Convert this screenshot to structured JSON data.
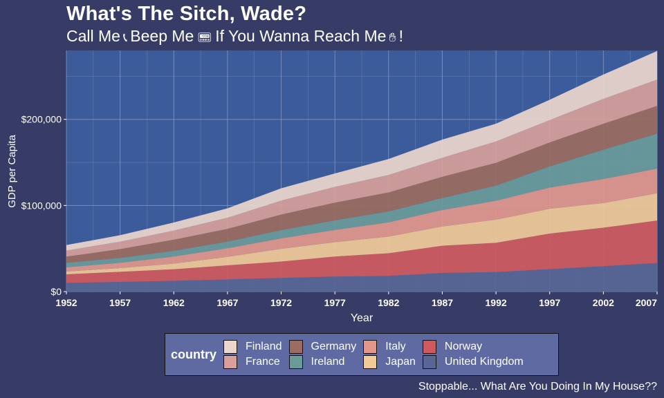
{
  "header": {
    "title": "What's The Sitch, Wade?",
    "subtitle_part1": "Call Me",
    "subtitle_part2": "Beep Me",
    "subtitle_part3": "If You Wanna Reach Me",
    "subtitle_part4": "!",
    "icons": [
      "phone-icon",
      "pager-icon",
      "waving-hand-icon"
    ]
  },
  "caption": "Stoppable... What Are You Doing In My House??",
  "colors": {
    "background": "#363c65",
    "plot_background": "#3b5b9a",
    "grid": "#8c9ccc",
    "legend_background": "#5e6aa1"
  },
  "chart_data": {
    "type": "area",
    "stacked": true,
    "xlabel": "Year",
    "ylabel": "GDP per Capita",
    "x": [
      1952,
      1957,
      1962,
      1967,
      1972,
      1977,
      1982,
      1987,
      1992,
      1997,
      2002,
      2007
    ],
    "x_tick_labels": [
      "1952",
      "1957",
      "1962",
      "1967",
      "1972",
      "1977",
      "1982",
      "1987",
      "1992",
      "1997",
      "2002",
      "2007"
    ],
    "xlim": [
      1952,
      2007
    ],
    "ylim": [
      0,
      280000
    ],
    "y_ticks": [
      0,
      100000,
      200000
    ],
    "y_tick_labels": [
      "$0",
      "$100,000",
      "$200,000"
    ],
    "grid": true,
    "legend_position": "bottom",
    "legend_title": "country",
    "stack_order_bottom_to_top": [
      "United Kingdom",
      "Norway",
      "Japan",
      "Italy",
      "Ireland",
      "Germany",
      "France",
      "Finland"
    ],
    "series": [
      {
        "name": "Finland",
        "color": "#ecd6cb",
        "values": [
          6424,
          7545,
          9372,
          10922,
          14359,
          15605,
          18533,
          21141,
          20647,
          23723,
          28205,
          33207
        ]
      },
      {
        "name": "France",
        "color": "#d7a09a",
        "values": [
          7030,
          8663,
          10560,
          12999,
          16107,
          18293,
          20294,
          22066,
          24704,
          25890,
          28926,
          30470
        ]
      },
      {
        "name": "Germany",
        "color": "#9b6c5f",
        "values": [
          7144,
          10188,
          12902,
          14746,
          18016,
          20513,
          22032,
          24639,
          26505,
          27789,
          30036,
          32170
        ]
      },
      {
        "name": "Ireland",
        "color": "#6a9a9a",
        "values": [
          5211,
          5599,
          6632,
          7656,
          9531,
          11151,
          12618,
          13873,
          17559,
          24522,
          34077,
          40676
        ]
      },
      {
        "name": "Italy",
        "color": "#e3968a",
        "values": [
          4931,
          6249,
          8244,
          10022,
          12269,
          14256,
          16537,
          19208,
          22014,
          24675,
          27968,
          28570
        ]
      },
      {
        "name": "Japan",
        "color": "#f3c997",
        "values": [
          3217,
          4318,
          6577,
          9848,
          14779,
          16610,
          19384,
          22376,
          26825,
          28817,
          28605,
          31656
        ]
      },
      {
        "name": "Norway",
        "color": "#d0595d",
        "values": [
          10095,
          11654,
          13450,
          16362,
          18965,
          23311,
          26298,
          31541,
          33966,
          41283,
          44684,
          49357
        ]
      },
      {
        "name": "United Kingdom",
        "color": "#596592",
        "values": [
          9980,
          11283,
          12477,
          14143,
          15895,
          17429,
          18232,
          21664,
          22705,
          26074,
          29479,
          33203
        ]
      }
    ]
  }
}
